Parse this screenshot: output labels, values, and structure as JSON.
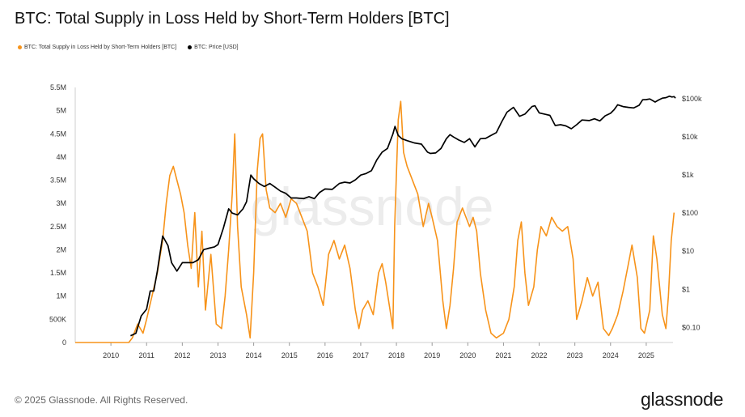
{
  "title": "BTC: Total Supply in Loss Held by Short-Term Holders [BTC]",
  "legend": [
    {
      "label": "BTC: Total Supply in Loss Held by Short-Term Holders [BTC]",
      "color": "#f7931a"
    },
    {
      "label": "BTC: Price [USD]",
      "color": "#000000"
    }
  ],
  "watermark": "glassnode",
  "footer": "© 2025 Glassnode. All Rights Reserved.",
  "logo": "glassnode",
  "chart_data": {
    "type": "line",
    "title": "BTC: Total Supply in Loss Held by Short-Term Holders [BTC]",
    "x_ticks": [
      "2010",
      "2011",
      "2012",
      "2013",
      "2014",
      "2015",
      "2016",
      "2017",
      "2018",
      "2019",
      "2020",
      "2021",
      "2022",
      "2023",
      "2024",
      "2025"
    ],
    "x_range": [
      "2009-01",
      "2025-10"
    ],
    "y_left": {
      "ticks": [
        "0",
        "500K",
        "1M",
        "1.5M",
        "2M",
        "2.5M",
        "3M",
        "3.5M",
        "4M",
        "4.5M",
        "5M",
        "5.5M"
      ],
      "range": [
        0,
        5500000
      ]
    },
    "y_right": {
      "ticks": [
        "$0.10",
        "$1",
        "$10",
        "$100",
        "$1k",
        "$10k",
        "$100k"
      ],
      "scale": "log",
      "range": [
        0.04,
        200000
      ]
    },
    "grid": false,
    "legend_position": "top-left",
    "series": [
      {
        "name": "BTC: Total Supply in Loss Held by Short-Term Holders [BTC]",
        "color": "#f7931a",
        "axis": "left",
        "points": [
          [
            2009.0,
            0
          ],
          [
            2010.5,
            0
          ],
          [
            2010.6,
            100000
          ],
          [
            2010.75,
            400000
          ],
          [
            2010.9,
            200000
          ],
          [
            2011.0,
            500000
          ],
          [
            2011.15,
            1000000
          ],
          [
            2011.3,
            1500000
          ],
          [
            2011.45,
            2200000
          ],
          [
            2011.55,
            3000000
          ],
          [
            2011.65,
            3600000
          ],
          [
            2011.75,
            3800000
          ],
          [
            2011.85,
            3500000
          ],
          [
            2011.95,
            3200000
          ],
          [
            2012.05,
            2800000
          ],
          [
            2012.15,
            2100000
          ],
          [
            2012.25,
            1600000
          ],
          [
            2012.35,
            2800000
          ],
          [
            2012.45,
            1200000
          ],
          [
            2012.55,
            2400000
          ],
          [
            2012.65,
            700000
          ],
          [
            2012.8,
            1900000
          ],
          [
            2012.95,
            400000
          ],
          [
            2013.1,
            300000
          ],
          [
            2013.2,
            1000000
          ],
          [
            2013.3,
            2000000
          ],
          [
            2013.4,
            3200000
          ],
          [
            2013.47,
            4500000
          ],
          [
            2013.55,
            2500000
          ],
          [
            2013.65,
            1200000
          ],
          [
            2013.8,
            600000
          ],
          [
            2013.9,
            100000
          ],
          [
            2014.0,
            1500000
          ],
          [
            2014.1,
            3700000
          ],
          [
            2014.18,
            4400000
          ],
          [
            2014.25,
            4500000
          ],
          [
            2014.35,
            3300000
          ],
          [
            2014.45,
            2900000
          ],
          [
            2014.6,
            2800000
          ],
          [
            2014.75,
            3000000
          ],
          [
            2014.9,
            2700000
          ],
          [
            2015.05,
            3100000
          ],
          [
            2015.2,
            3000000
          ],
          [
            2015.35,
            2700000
          ],
          [
            2015.5,
            2400000
          ],
          [
            2015.65,
            1500000
          ],
          [
            2015.8,
            1200000
          ],
          [
            2015.95,
            800000
          ],
          [
            2016.1,
            1900000
          ],
          [
            2016.25,
            2200000
          ],
          [
            2016.4,
            1800000
          ],
          [
            2016.55,
            2100000
          ],
          [
            2016.7,
            1600000
          ],
          [
            2016.85,
            700000
          ],
          [
            2016.95,
            300000
          ],
          [
            2017.05,
            700000
          ],
          [
            2017.2,
            900000
          ],
          [
            2017.35,
            600000
          ],
          [
            2017.5,
            1500000
          ],
          [
            2017.6,
            1700000
          ],
          [
            2017.7,
            1300000
          ],
          [
            2017.8,
            800000
          ],
          [
            2017.9,
            300000
          ],
          [
            2017.95,
            2500000
          ],
          [
            2018.05,
            4800000
          ],
          [
            2018.12,
            5200000
          ],
          [
            2018.2,
            4100000
          ],
          [
            2018.3,
            3800000
          ],
          [
            2018.4,
            3600000
          ],
          [
            2018.5,
            3400000
          ],
          [
            2018.6,
            3200000
          ],
          [
            2018.75,
            2500000
          ],
          [
            2018.9,
            3000000
          ],
          [
            2019.0,
            2700000
          ],
          [
            2019.15,
            2200000
          ],
          [
            2019.3,
            900000
          ],
          [
            2019.4,
            300000
          ],
          [
            2019.5,
            800000
          ],
          [
            2019.6,
            1600000
          ],
          [
            2019.7,
            2600000
          ],
          [
            2019.85,
            2900000
          ],
          [
            2019.95,
            2700000
          ],
          [
            2020.05,
            2500000
          ],
          [
            2020.15,
            2700000
          ],
          [
            2020.25,
            2400000
          ],
          [
            2020.35,
            1500000
          ],
          [
            2020.5,
            700000
          ],
          [
            2020.65,
            200000
          ],
          [
            2020.8,
            100000
          ],
          [
            2021.0,
            200000
          ],
          [
            2021.15,
            500000
          ],
          [
            2021.3,
            1200000
          ],
          [
            2021.4,
            2200000
          ],
          [
            2021.5,
            2600000
          ],
          [
            2021.6,
            1500000
          ],
          [
            2021.7,
            800000
          ],
          [
            2021.85,
            1200000
          ],
          [
            2021.95,
            2000000
          ],
          [
            2022.05,
            2500000
          ],
          [
            2022.2,
            2300000
          ],
          [
            2022.35,
            2700000
          ],
          [
            2022.5,
            2500000
          ],
          [
            2022.65,
            2400000
          ],
          [
            2022.8,
            2500000
          ],
          [
            2022.95,
            1800000
          ],
          [
            2023.05,
            500000
          ],
          [
            2023.2,
            900000
          ],
          [
            2023.35,
            1400000
          ],
          [
            2023.5,
            1000000
          ],
          [
            2023.65,
            1300000
          ],
          [
            2023.8,
            300000
          ],
          [
            2023.95,
            150000
          ],
          [
            2024.05,
            300000
          ],
          [
            2024.2,
            600000
          ],
          [
            2024.35,
            1100000
          ],
          [
            2024.5,
            1700000
          ],
          [
            2024.6,
            2100000
          ],
          [
            2024.75,
            1400000
          ],
          [
            2024.85,
            300000
          ],
          [
            2024.95,
            200000
          ],
          [
            2025.1,
            700000
          ],
          [
            2025.2,
            2300000
          ],
          [
            2025.3,
            1800000
          ],
          [
            2025.45,
            600000
          ],
          [
            2025.55,
            300000
          ],
          [
            2025.62,
            1000000
          ],
          [
            2025.7,
            2200000
          ],
          [
            2025.78,
            2800000
          ]
        ]
      },
      {
        "name": "BTC: Price [USD]",
        "color": "#000000",
        "axis": "right",
        "points": [
          [
            2010.55,
            0.06
          ],
          [
            2010.7,
            0.07
          ],
          [
            2010.85,
            0.2
          ],
          [
            2011.0,
            0.3
          ],
          [
            2011.1,
            0.9
          ],
          [
            2011.2,
            0.9
          ],
          [
            2011.3,
            3
          ],
          [
            2011.45,
            25
          ],
          [
            2011.6,
            14
          ],
          [
            2011.7,
            5
          ],
          [
            2011.85,
            3
          ],
          [
            2012.0,
            5
          ],
          [
            2012.15,
            5
          ],
          [
            2012.3,
            5
          ],
          [
            2012.45,
            6
          ],
          [
            2012.6,
            11
          ],
          [
            2012.75,
            12
          ],
          [
            2012.9,
            13
          ],
          [
            2013.0,
            15
          ],
          [
            2013.15,
            40
          ],
          [
            2013.3,
            130
          ],
          [
            2013.4,
            100
          ],
          [
            2013.55,
            90
          ],
          [
            2013.7,
            130
          ],
          [
            2013.8,
            200
          ],
          [
            2013.92,
            1000
          ],
          [
            2014.0,
            800
          ],
          [
            2014.15,
            600
          ],
          [
            2014.3,
            500
          ],
          [
            2014.45,
            600
          ],
          [
            2014.6,
            480
          ],
          [
            2014.75,
            380
          ],
          [
            2014.9,
            330
          ],
          [
            2015.05,
            250
          ],
          [
            2015.2,
            250
          ],
          [
            2015.4,
            240
          ],
          [
            2015.55,
            270
          ],
          [
            2015.7,
            240
          ],
          [
            2015.85,
            350
          ],
          [
            2016.0,
            430
          ],
          [
            2016.2,
            420
          ],
          [
            2016.4,
            600
          ],
          [
            2016.55,
            650
          ],
          [
            2016.7,
            620
          ],
          [
            2016.85,
            750
          ],
          [
            2017.0,
            1000
          ],
          [
            2017.15,
            1100
          ],
          [
            2017.3,
            1300
          ],
          [
            2017.45,
            2500
          ],
          [
            2017.6,
            4000
          ],
          [
            2017.75,
            5000
          ],
          [
            2017.9,
            12000
          ],
          [
            2017.96,
            19000
          ],
          [
            2018.05,
            11000
          ],
          [
            2018.15,
            9000
          ],
          [
            2018.3,
            8000
          ],
          [
            2018.5,
            7000
          ],
          [
            2018.7,
            6500
          ],
          [
            2018.87,
            4000
          ],
          [
            2018.95,
            3700
          ],
          [
            2019.1,
            3800
          ],
          [
            2019.25,
            5000
          ],
          [
            2019.4,
            9000
          ],
          [
            2019.5,
            11500
          ],
          [
            2019.6,
            10000
          ],
          [
            2019.75,
            8300
          ],
          [
            2019.9,
            7200
          ],
          [
            2020.05,
            9000
          ],
          [
            2020.2,
            5500
          ],
          [
            2020.35,
            9000
          ],
          [
            2020.5,
            9200
          ],
          [
            2020.65,
            11000
          ],
          [
            2020.8,
            13000
          ],
          [
            2020.95,
            25000
          ],
          [
            2021.1,
            45000
          ],
          [
            2021.28,
            60000
          ],
          [
            2021.45,
            35000
          ],
          [
            2021.6,
            40000
          ],
          [
            2021.8,
            63000
          ],
          [
            2021.88,
            66000
          ],
          [
            2022.0,
            43000
          ],
          [
            2022.15,
            40000
          ],
          [
            2022.3,
            37000
          ],
          [
            2022.45,
            20000
          ],
          [
            2022.6,
            21000
          ],
          [
            2022.75,
            19500
          ],
          [
            2022.9,
            16500
          ],
          [
            2023.05,
            21000
          ],
          [
            2023.2,
            28000
          ],
          [
            2023.4,
            27000
          ],
          [
            2023.55,
            30000
          ],
          [
            2023.7,
            26500
          ],
          [
            2023.85,
            36000
          ],
          [
            2024.0,
            42000
          ],
          [
            2024.1,
            52000
          ],
          [
            2024.2,
            70000
          ],
          [
            2024.35,
            63000
          ],
          [
            2024.5,
            60000
          ],
          [
            2024.65,
            58000
          ],
          [
            2024.8,
            68000
          ],
          [
            2024.9,
            95000
          ],
          [
            2025.0,
            96000
          ],
          [
            2025.1,
            100000
          ],
          [
            2025.25,
            83000
          ],
          [
            2025.35,
            94000
          ],
          [
            2025.45,
            105000
          ],
          [
            2025.55,
            108000
          ],
          [
            2025.65,
            118000
          ],
          [
            2025.72,
            112000
          ],
          [
            2025.78,
            115000
          ],
          [
            2025.82,
            105000
          ]
        ]
      }
    ]
  }
}
